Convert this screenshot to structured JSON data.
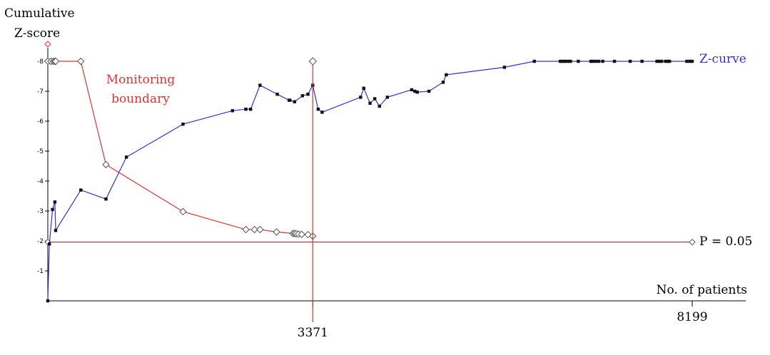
{
  "chart_data": {
    "type": "line",
    "ylabel_line1": "Cumulative",
    "ylabel_line2": "Z-score",
    "xlabel": "No. of patients",
    "y_tick_labels": [
      "-8",
      "-7",
      "-6",
      "-5",
      "-4",
      "-3",
      "-2",
      "-1"
    ],
    "y_ticks": [
      8,
      7,
      6,
      5,
      4,
      3,
      2,
      1
    ],
    "ylim": [
      0,
      8.3
    ],
    "xlim": [
      0,
      8199
    ],
    "x_tick_labels": [
      "3371",
      "8199"
    ],
    "x_ticks": [
      3371,
      8199
    ],
    "significance_label": "P = 0.05",
    "significance_z": 1.96,
    "information_size": 3371,
    "series": [
      {
        "name": "Z-curve",
        "color": "#3333cc",
        "x": [
          0,
          20,
          60,
          90,
          100,
          420,
          740,
          1000,
          1720,
          2350,
          2520,
          2580,
          2700,
          2920,
          3070,
          3080,
          3140,
          3240,
          3310,
          3371,
          3440,
          3490,
          3980,
          4020,
          4100,
          4160,
          4220,
          4320,
          4630,
          4670,
          4700,
          4850,
          5030,
          5070,
          5810,
          6190,
          6520,
          6540,
          6570,
          6590,
          6630,
          6650,
          6750,
          6910,
          6930,
          6970,
          7010,
          7060,
          7210,
          7410,
          7560,
          7750,
          7780,
          7810,
          7860,
          7890,
          7910,
          8130,
          8170,
          8199
        ],
        "y": [
          0,
          1.9,
          3.05,
          3.3,
          2.35,
          3.7,
          3.4,
          4.8,
          5.9,
          6.35,
          6.4,
          6.4,
          7.2,
          6.9,
          6.7,
          6.7,
          6.65,
          6.85,
          6.9,
          7.2,
          6.4,
          6.3,
          6.8,
          7.1,
          6.6,
          6.75,
          6.5,
          6.8,
          7.05,
          7.0,
          6.97,
          7.0,
          7.3,
          7.55,
          7.8,
          8.0,
          8.0,
          8.0,
          8.0,
          8.0,
          8.0,
          8.0,
          8.0,
          8.0,
          8.0,
          8.0,
          8.0,
          8.0,
          8.0,
          8.0,
          8.0,
          8.0,
          8.0,
          8.0,
          8.0,
          8.0,
          8.0,
          8.0,
          8.0,
          8.0
        ]
      },
      {
        "name": "Monitoring boundary",
        "color": "#dd3333",
        "x": [
          0,
          40,
          70,
          90,
          100,
          420,
          740,
          1720,
          2520,
          2630,
          2700,
          2910,
          3120,
          3140,
          3160,
          3190,
          3230,
          3310,
          3371
        ],
        "y": [
          8.0,
          8.0,
          8.0,
          8.0,
          8.0,
          8.0,
          4.55,
          2.98,
          2.38,
          2.38,
          2.38,
          2.3,
          2.25,
          2.25,
          2.24,
          2.23,
          2.22,
          2.21,
          2.16
        ]
      }
    ]
  }
}
